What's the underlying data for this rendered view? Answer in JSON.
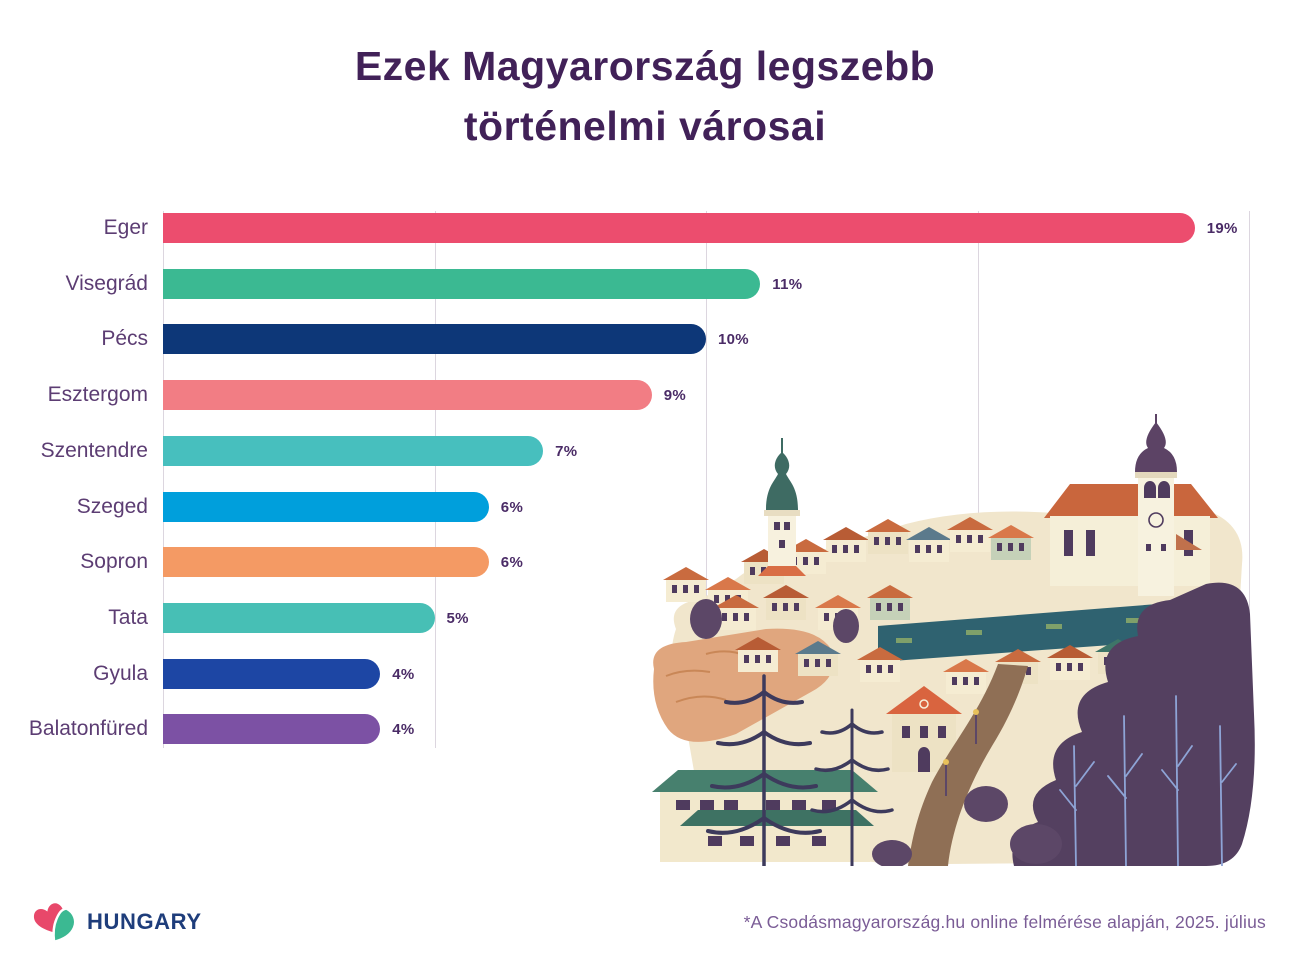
{
  "header": {
    "title_line1": "Ezek Magyarország legszebb",
    "title_line2": "történelmi városai"
  },
  "footer": {
    "logo_text": "HUNGARY",
    "footnote": "*A Csodásmagyarország.hu online felmérése alapján, 2025. július"
  },
  "colors": {
    "title_text": "#412158",
    "category_label": "#5C3D73",
    "value_label": "#4A2B66",
    "gridline": "#DCD6DF",
    "footnote_text": "#7A5C96",
    "logo_navy": "#1E3D7B",
    "logo_red": "#E8486A",
    "logo_green": "#3BB992"
  },
  "chart_data": {
    "type": "bar",
    "orientation": "horizontal",
    "title": "Ezek Magyarország legszebb történelmi városai",
    "categories": [
      "Eger",
      "Visegrád",
      "Pécs",
      "Esztergom",
      "Szentendre",
      "Szeged",
      "Sopron",
      "Tata",
      "Gyula",
      "Balatonfüred"
    ],
    "values": [
      19,
      11,
      10,
      9,
      7,
      6,
      6,
      5,
      4,
      4
    ],
    "value_labels": [
      "19%",
      "11%",
      "10%",
      "9%",
      "7%",
      "6%",
      "6%",
      "5%",
      "4%",
      "4%"
    ],
    "bar_colors": [
      "#EC4D6E",
      "#3BB992",
      "#0D3778",
      "#F27D84",
      "#47BFBE",
      "#009FDC",
      "#F49A64",
      "#47BFB5",
      "#1D46A4",
      "#7C51A4"
    ],
    "xlabel": "",
    "ylabel": "",
    "xlim": [
      0,
      20
    ],
    "grid_step": 5,
    "grid": true,
    "legend": false,
    "source_note": "*A Csodásmagyarország.hu online felmérése alapján, 2025. július"
  }
}
